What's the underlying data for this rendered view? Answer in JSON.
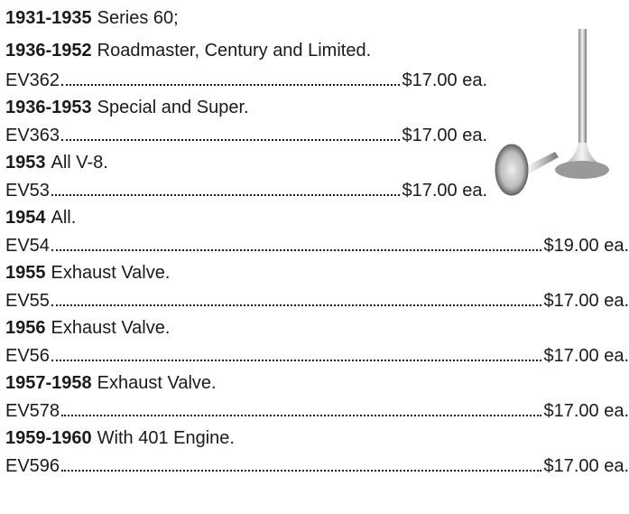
{
  "entries": [
    {
      "headings": [
        {
          "year": "1931-1935",
          "text": "Series 60;"
        },
        {
          "year": "1936-1952",
          "text": "Roadmaster, Century and Limited."
        }
      ],
      "part": "EV362",
      "price": "$17.00 ea."
    },
    {
      "headings": [
        {
          "year": "1936-1953",
          "text": "Special and Super."
        }
      ],
      "part": "EV363",
      "price": "$17.00 ea."
    },
    {
      "headings": [
        {
          "year": "1953",
          "text": "All V-8."
        }
      ],
      "part": "EV53",
      "price": "$17.00 ea."
    },
    {
      "headings": [
        {
          "year": "1954",
          "text": "All."
        }
      ],
      "part": "EV54",
      "price": "$19.00 ea."
    },
    {
      "headings": [
        {
          "year": "1955",
          "text": "Exhaust Valve."
        }
      ],
      "part": "EV55",
      "price": "$17.00 ea."
    },
    {
      "headings": [
        {
          "year": "1956",
          "text": "Exhaust Valve."
        }
      ],
      "part": "EV56",
      "price": "$17.00 ea."
    },
    {
      "headings": [
        {
          "year": "1957-1958",
          "text": "Exhaust Valve."
        }
      ],
      "part": "EV578",
      "price": "$17.00 ea."
    },
    {
      "headings": [
        {
          "year": "1959-1960",
          "text": "With 401 Engine."
        }
      ],
      "part": "EV596",
      "price": "$17.00 ea."
    }
  ]
}
